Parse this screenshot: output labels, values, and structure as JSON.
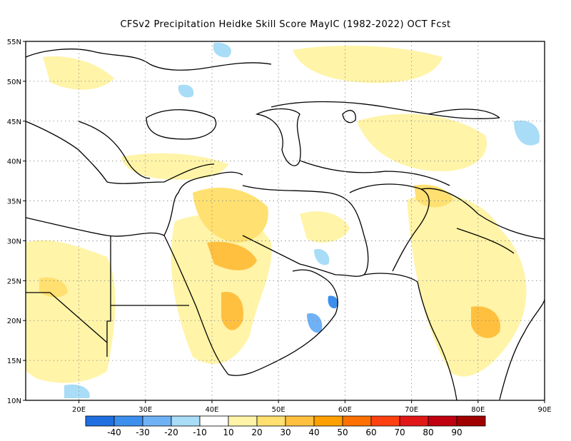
{
  "title": "CFSv2  Precipitation Heidke Skill Score MayIC (1982-2022) OCT Fcst",
  "map": {
    "lon_range": [
      12,
      90
    ],
    "lat_range": [
      10,
      55
    ],
    "lon_ticks": [
      "20E",
      "30E",
      "40E",
      "50E",
      "60E",
      "70E",
      "80E",
      "90E"
    ],
    "lat_ticks": [
      "10N",
      "15N",
      "20N",
      "25N",
      "30N",
      "35N",
      "40N",
      "45N",
      "50N",
      "55N"
    ],
    "grid": "dotted"
  },
  "colorbar": {
    "labels": [
      "-40",
      "-30",
      "-20",
      "-10",
      "10",
      "20",
      "30",
      "40",
      "50",
      "60",
      "70",
      "80",
      "90"
    ],
    "colors": [
      "#1f6fe0",
      "#3d8fee",
      "#6fb1f5",
      "#a8dcf7",
      "#ffffff",
      "#fff4a8",
      "#ffe070",
      "#ffc040",
      "#ffa000",
      "#ff7000",
      "#ff4010",
      "#e01818",
      "#c00010",
      "#a00000"
    ]
  }
}
